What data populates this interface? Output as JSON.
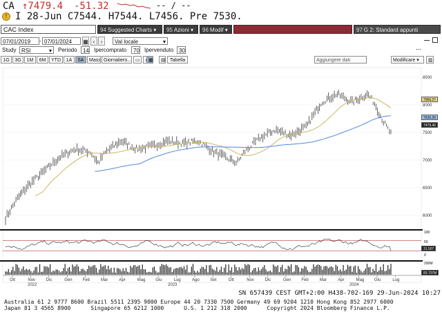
{
  "header": {
    "ticker": "CA",
    "last_price": "↑7479.4",
    "net_change": "-51.32",
    "dashes": "-- / --",
    "info_line": "I 28-Jun C7544. H7544. L7456. Pre 7530."
  },
  "toolbar": {
    "security": "CAC Index",
    "suggested_charts": "Suggested Charts",
    "actions": "Azioni",
    "edit": "Modif",
    "panel_label": "G 2: Standard appunti",
    "function_numbers": [
      "94",
      "95",
      "96",
      "97"
    ]
  },
  "settings": {
    "start_date": "07/01/2019",
    "end_date": "07/01/2024",
    "currency": "Val locale",
    "study_label": "Study",
    "study_value": "RSI",
    "period_label": "Periodo",
    "period_value": "14",
    "overbought_label": "Ipercomprato",
    "overbought_value": "70",
    "oversold_label": "Ipervenduto",
    "oversold_value": "30",
    "ellipsis": "..."
  },
  "timeframe_tabs": [
    "1G",
    "3G",
    "1M",
    "6M",
    "YTD",
    "1A",
    "5A",
    "Mass",
    "Giornaliero..."
  ],
  "active_tab": "5A",
  "table_label": "Tabella",
  "add_data_label": "Aggiungere dati",
  "modify_label": "Modificare",
  "chart_data": {
    "type": "line",
    "price_axis_ticks": [
      6000,
      6500,
      7000,
      7500,
      8000,
      8500
    ],
    "ylim": [
      5800,
      8600
    ],
    "price_tags": [
      "7966.07",
      "7626.26",
      "7479.40"
    ],
    "rsi_tags": [
      "100",
      "50",
      "31.507",
      "0"
    ],
    "volume_tags": [
      "200M",
      "83.707M"
    ],
    "x_months": [
      "Ott",
      "Nov",
      "Dic",
      "Gen",
      "Feb",
      "Mar",
      "Apr",
      "Mag",
      "Giu",
      "Lug",
      "Ago",
      "Set",
      "Ott",
      "Nov",
      "Dic",
      "Gen",
      "Feb",
      "Mar",
      "Apr",
      "Mag",
      "Giu",
      "Lug"
    ],
    "x_years": [
      "2022",
      "2023",
      "2024"
    ],
    "colors": {
      "price": "#1a1a1a",
      "ma_short": "#c9b65c",
      "ma_long": "#4f88d6",
      "rsi": "#222222",
      "rsi_band": "#c23a3a",
      "volume": "#222222"
    }
  },
  "footer": {
    "sn_line": "SN 657439 CEST GMT+2:00 H438-702-169 29-Jun-2024 10:27",
    "contacts_1": "Australia 61 2 9777 8600 Brazil 5511 2395 9000 Europe 44 20 7330 7500 Germany 49 69 9204 1210 Hong Kong 852 2977 6000",
    "contacts_2": "Japan 81 3 4565 8900      Singapore 65 6212 1000      U.S. 1 212 318 2000      Copyright 2024 Bloomberg Finance L.P."
  }
}
